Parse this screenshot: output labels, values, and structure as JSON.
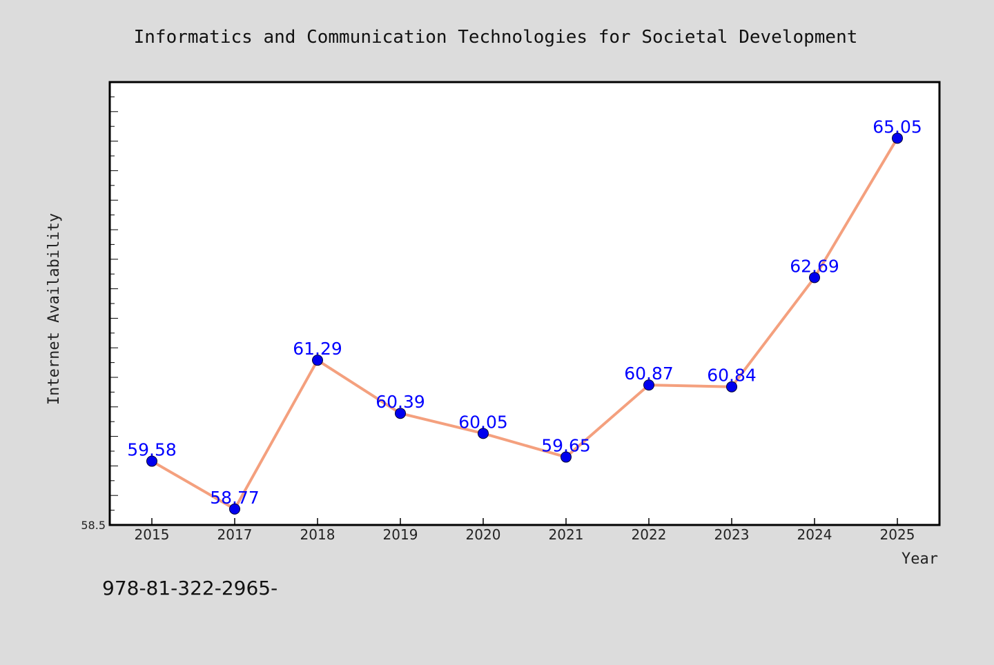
{
  "chart_data": {
    "type": "line",
    "title": "Informatics and Communication Technologies for Societal Development",
    "xlabel": "Year",
    "ylabel": "Internet Availability",
    "categories": [
      "2015",
      "2017",
      "2018",
      "2019",
      "2020",
      "2021",
      "2022",
      "2023",
      "2024",
      "2025"
    ],
    "values": [
      59.58,
      58.77,
      61.29,
      60.39,
      60.05,
      59.65,
      60.87,
      60.84,
      62.69,
      65.05
    ],
    "data_labels": [
      "59.58",
      "58.77",
      "61.29",
      "60.39",
      "60.05",
      "59.65",
      "60.87",
      "60.84",
      "62.69",
      "65.05"
    ],
    "ylim": [
      58.5,
      66.0
    ],
    "y_min_label": "58.5",
    "grid": false,
    "colors": {
      "line": "#f4a07e",
      "marker": "#0000ee",
      "label": "#0000ff",
      "background": "#dcdcdc",
      "plot_background": "#ffffff"
    }
  },
  "footer": {
    "text": "978-81-322-2965-"
  }
}
